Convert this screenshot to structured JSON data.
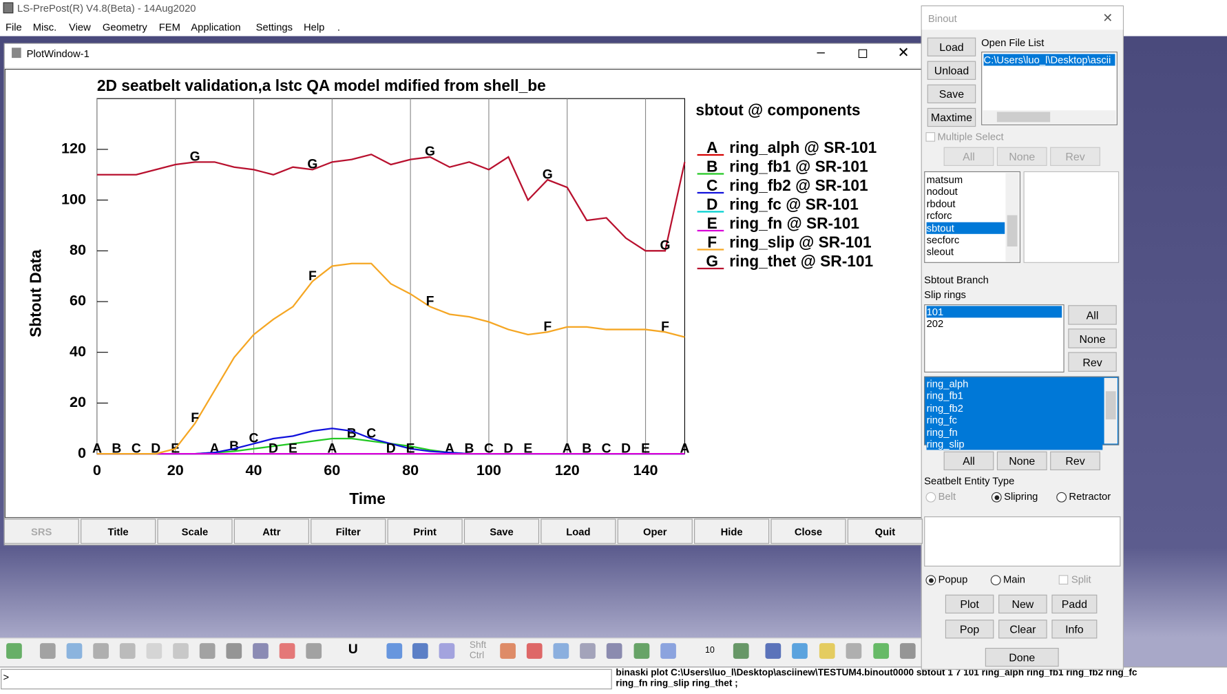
{
  "app": {
    "title": "LS-PrePost(R) V4.8(Beta) - 14Aug2020",
    "menu": [
      "File",
      "Misc.",
      "View",
      "Geometry",
      "FEM",
      "Application",
      "Settings",
      "Help",
      "."
    ]
  },
  "plot_window": {
    "title": "PlotWindow-1",
    "buttons": [
      "SRS",
      "Title",
      "Scale",
      "Attr",
      "Filter",
      "Print",
      "Save",
      "Load",
      "Oper",
      "Hide",
      "Close",
      "Quit"
    ]
  },
  "chart_data": {
    "type": "line",
    "title": "2D seatbelt validation,a lstc QA model mdified from shell_be",
    "legend_title": "sbtout @ components",
    "x_label": "Time",
    "y_label": "Sbtout Data",
    "x": [
      0,
      5,
      10,
      15,
      20,
      25,
      30,
      35,
      40,
      45,
      50,
      55,
      60,
      65,
      70,
      75,
      80,
      85,
      90,
      95,
      100,
      105,
      110,
      115,
      120,
      125,
      130,
      135,
      140,
      145,
      150
    ],
    "series": [
      {
        "name": "ring_alph @ SR-101",
        "marker": "A",
        "color": "#d40000",
        "values": [
          0,
          0,
          0,
          0,
          0,
          0,
          0,
          0,
          0,
          0,
          0,
          0,
          0,
          0,
          0,
          0,
          0,
          0,
          0,
          0,
          0,
          0,
          0,
          0,
          0,
          0,
          0,
          0,
          0,
          0,
          0
        ]
      },
      {
        "name": "ring_fb1 @ SR-101",
        "marker": "B",
        "color": "#22c822",
        "values": [
          0,
          0,
          0,
          0,
          0,
          0,
          0.5,
          1,
          2,
          3,
          4,
          5,
          6,
          6,
          5,
          4,
          3,
          1.5,
          0.5,
          0,
          0,
          0,
          0,
          0,
          0,
          0,
          0,
          0,
          0,
          0,
          0
        ]
      },
      {
        "name": "ring_fb2 @ SR-101",
        "marker": "C",
        "color": "#1010dc",
        "values": [
          0,
          0,
          0,
          0,
          0,
          0,
          0.5,
          2,
          4,
          6,
          7,
          9,
          10,
          9,
          6,
          4,
          2,
          1,
          0.5,
          0,
          0,
          0,
          0,
          0,
          0,
          0,
          0,
          0,
          0,
          0,
          0
        ]
      },
      {
        "name": "ring_fc @ SR-101",
        "marker": "D",
        "color": "#00d0d0",
        "values": [
          0,
          0,
          0,
          0,
          0,
          0,
          0,
          0,
          0,
          0,
          0,
          0,
          0,
          0,
          0,
          0,
          0,
          0,
          0,
          0,
          0,
          0,
          0,
          0,
          0,
          0,
          0,
          0,
          0,
          0,
          0
        ]
      },
      {
        "name": "ring_fn @ SR-101",
        "marker": "E",
        "color": "#d800d8",
        "values": [
          0,
          0,
          0,
          0,
          0,
          0,
          0,
          0,
          0,
          0,
          0,
          0,
          0,
          0,
          0,
          0,
          0,
          0,
          0,
          0,
          0,
          0,
          0,
          0,
          0,
          0,
          0,
          0,
          0,
          0,
          0
        ]
      },
      {
        "name": "ring_slip @ SR-101",
        "marker": "F",
        "color": "#f5a623",
        "values": [
          0,
          0,
          0,
          0,
          2,
          12,
          25,
          38,
          47,
          53,
          58,
          68,
          74,
          75,
          75,
          67,
          63,
          58,
          55,
          54,
          52,
          49,
          47,
          48,
          50,
          50,
          49,
          49,
          49,
          48,
          46
        ]
      },
      {
        "name": "ring_thet @ SR-101",
        "marker": "G",
        "color": "#b8102e",
        "values": [
          110,
          110,
          110,
          112,
          114,
          115,
          115,
          113,
          112,
          110,
          113,
          112,
          115,
          116,
          118,
          114,
          116,
          117,
          113,
          115,
          112,
          117,
          100,
          108,
          105,
          92,
          93,
          85,
          80,
          80,
          115
        ]
      }
    ],
    "xlim": [
      0,
      150
    ],
    "xticks": [
      0,
      20,
      40,
      60,
      80,
      100,
      120,
      140
    ],
    "ylim": [
      0,
      140
    ],
    "yticks": [
      0,
      20,
      40,
      60,
      80,
      100,
      120
    ],
    "grid": "x"
  },
  "binout": {
    "title": "Binout",
    "file_buttons": [
      "Load",
      "Unload",
      "Save",
      "Maxtime"
    ],
    "open_file_list": "Open File List",
    "files": [
      "C:\\Users\\luo_l\\Desktop\\ascii"
    ],
    "multiple_select": "Multiple Select",
    "select_buttons": [
      "All",
      "None",
      "Rev"
    ],
    "types": [
      "matsum",
      "nodout",
      "rbdout",
      "rcforc",
      "sbtout",
      "secforc",
      "sleout"
    ],
    "branch_label": "Sbtout Branch",
    "rings_label": "Slip rings",
    "rings": [
      "101",
      "202"
    ],
    "ring_buttons": [
      "All",
      "None",
      "Rev"
    ],
    "components": [
      "ring_alph",
      "ring_fb1",
      "ring_fb2",
      "ring_fc",
      "ring_fn",
      "ring_slip"
    ],
    "component_buttons": [
      "All",
      "None",
      "Rev"
    ],
    "entity_label": "Seatbelt Entity Type",
    "entity_types": [
      "Belt",
      "Slipring",
      "Retractor"
    ],
    "output_modes": [
      "Popup",
      "Main",
      "Split"
    ],
    "action_buttons": [
      "Plot",
      "New",
      "Padd",
      "Pop",
      "Clear",
      "Info"
    ],
    "done": "Done"
  },
  "toolbar": {
    "shift_ctrl": "Shft Ctrl",
    "u": "U",
    "step": "10"
  },
  "command": {
    "prompt": ">",
    "output": [
      "binaski plot  C:\\Users\\luo_l\\Desktop\\asciinew\\TESTUM4.binout0000   sbtout 1 7 101 ring_alph ring_fb1 ring_fb2 ring_fc",
      "ring_fn ring_slip ring_thet ;"
    ]
  }
}
